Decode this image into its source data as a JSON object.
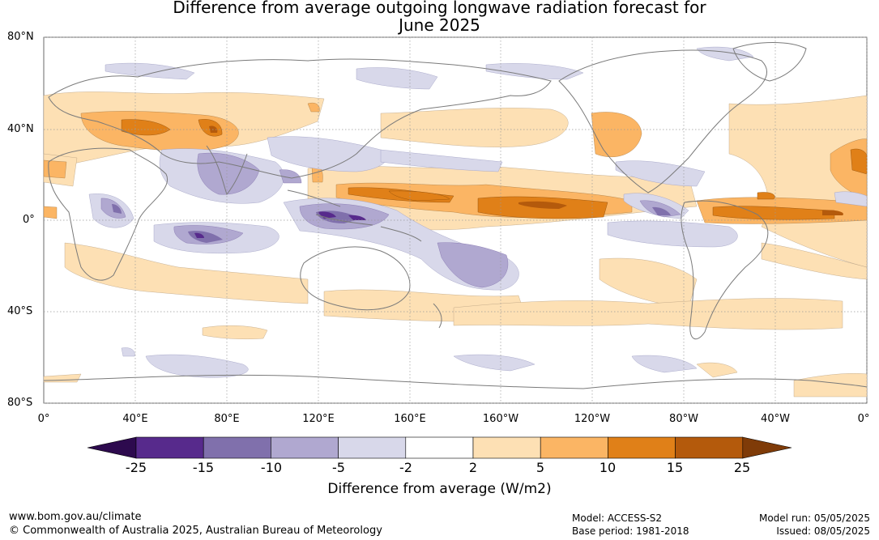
{
  "title_line1": "Difference from average outgoing longwave radiation forecast for",
  "title_line2": "June 2025",
  "lat_labels": [
    "80°N",
    "40°N",
    "0°",
    "40°S",
    "80°S"
  ],
  "lon_labels": [
    "0°",
    "40°E",
    "80°E",
    "120°E",
    "160°E",
    "160°W",
    "120°W",
    "80°W",
    "40°W",
    "0°"
  ],
  "colorbar": {
    "title": "Difference from average (W/m2)",
    "ticks": [
      "-25",
      "-15",
      "-10",
      "-5",
      "-2",
      "2",
      "5",
      "10",
      "15",
      "25"
    ],
    "colors": [
      "#2d0a4e",
      "#572a8c",
      "#8070ac",
      "#b0a8d0",
      "#d8d8ea",
      "#ffffff",
      "#fde0b4",
      "#fbb564",
      "#e08018",
      "#b45a0c",
      "#7f3b08"
    ]
  },
  "map_colors": {
    "ocean_neutral": "#ffffff",
    "coast": "#7a7a7a",
    "grid": "#999999"
  },
  "footer": {
    "url": "www.bom.gov.au/climate",
    "copyright": "© Commonwealth of Australia 2025, Australian Bureau of Meteorology",
    "model": "Model: ACCESS-S2",
    "base_period": "Base period: 1981-2018",
    "model_run": "Model run: 05/05/2025",
    "issued": "Issued: 08/05/2025"
  }
}
